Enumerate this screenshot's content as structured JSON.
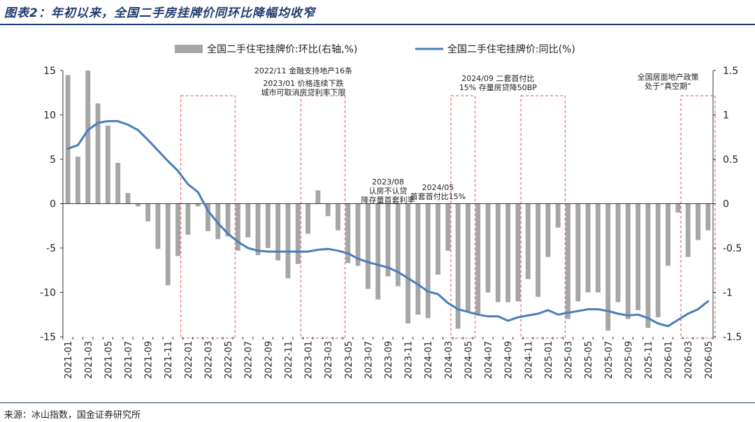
{
  "figure": {
    "title": "图表2：年初以来，全国二手房挂牌价同环比降幅均收窄",
    "source": "来源：冰山指数，国金证券研究所"
  },
  "chart_data": {
    "type": "bar+line",
    "categories": [
      "2021-01",
      "2021-02",
      "2021-03",
      "2021-04",
      "2021-05",
      "2021-06",
      "2021-07",
      "2021-08",
      "2021-09",
      "2021-10",
      "2021-11",
      "2021-12",
      "2022-01",
      "2022-02",
      "2022-03",
      "2022-04",
      "2022-05",
      "2022-06",
      "2022-07",
      "2022-08",
      "2022-09",
      "2022-10",
      "2022-11",
      "2022-12",
      "2023-01",
      "2023-02",
      "2023-03",
      "2023-04",
      "2023-05",
      "2023-06",
      "2023-07",
      "2023-08",
      "2023-09",
      "2023-10",
      "2023-11",
      "2023-12",
      "2024-01",
      "2024-02",
      "2024-03",
      "2024-04",
      "2024-05",
      "2024-06",
      "2024-07",
      "2024-08",
      "2024-09",
      "2024-10",
      "2024-11",
      "2024-12",
      "2025-01",
      "2025-02",
      "2025-03",
      "2025-04",
      "2025-05",
      "2025-06",
      "2025-07",
      "2025-08",
      "2025-09",
      "2025-10",
      "2025-11",
      "2025-12",
      "2026-01",
      "2026-02",
      "2026-03",
      "2026-04",
      "2026-05"
    ],
    "x_tick_labels": [
      "2021-01",
      "2021-03",
      "2021-05",
      "2021-07",
      "2021-09",
      "2021-11",
      "2022-01",
      "2022-03",
      "2022-05",
      "2022-07",
      "2022-09",
      "2022-11",
      "2023-01",
      "2023-03",
      "2023-05",
      "2023-07",
      "2023-09",
      "2023-11",
      "2024-01",
      "2024-03",
      "2024-05",
      "2024-07",
      "2024-09",
      "2024-11",
      "2025-01",
      "2025-03",
      "2025-05",
      "2025-07",
      "2025-09",
      "2025-11",
      "2026-01",
      "2026-03",
      "2026-05"
    ],
    "series": [
      {
        "name": "全国二手住宅挂牌价:环比(右轴,%)",
        "type": "bar",
        "axis": "left",
        "color": "#a6a6a6",
        "values": [
          14.5,
          5.3,
          15.0,
          11.3,
          8.8,
          4.6,
          1.2,
          -0.3,
          -2.0,
          -5.1,
          -9.2,
          -5.9,
          -3.5,
          -0.3,
          -3.1,
          -4.0,
          -3.7,
          -5.3,
          -3.8,
          -5.8,
          -5.0,
          -6.4,
          -8.4,
          -6.8,
          -3.4,
          1.5,
          -1.4,
          -3.0,
          -6.7,
          -7.0,
          -9.6,
          -10.8,
          -8.2,
          -9.3,
          -13.5,
          -12.5,
          -12.9,
          -8.0,
          -5.3,
          -14.1,
          -12.1,
          -12.4,
          -10.0,
          -11.1,
          -11.1,
          -11.0,
          -8.5,
          -10.5,
          -6.0,
          -2.7,
          -13.0,
          -11.0,
          -10.0,
          -10.0,
          -14.3,
          -11.1,
          -13.0,
          -12.0,
          -14.0,
          -12.8,
          -7.0,
          -1.0,
          -6.0,
          -4.1,
          -3.0
        ]
      },
      {
        "name": "全国二手住宅挂牌价:同比(%)",
        "type": "line",
        "axis": "right",
        "color": "#4a7ebb",
        "values": [
          0.62,
          0.66,
          0.83,
          0.91,
          0.93,
          0.93,
          0.89,
          0.83,
          0.72,
          0.6,
          0.48,
          0.37,
          0.22,
          0.13,
          -0.08,
          -0.22,
          -0.34,
          -0.43,
          -0.5,
          -0.53,
          -0.54,
          -0.54,
          -0.54,
          -0.54,
          -0.54,
          -0.52,
          -0.51,
          -0.53,
          -0.56,
          -0.62,
          -0.66,
          -0.69,
          -0.72,
          -0.77,
          -0.84,
          -0.91,
          -0.99,
          -1.02,
          -1.12,
          -1.19,
          -1.22,
          -1.25,
          -1.27,
          -1.27,
          -1.32,
          -1.28,
          -1.26,
          -1.24,
          -1.2,
          -1.25,
          -1.23,
          -1.21,
          -1.19,
          -1.19,
          -1.21,
          -1.24,
          -1.26,
          -1.25,
          -1.29,
          -1.35,
          -1.38,
          -1.31,
          -1.24,
          -1.19,
          -1.1
        ]
      }
    ],
    "left_axis": {
      "ylim": [
        -15,
        15
      ],
      "ticks": [
        "15",
        "10",
        "5",
        "0",
        "-5",
        "-10",
        "-15"
      ]
    },
    "right_axis": {
      "ylim": [
        -1.5,
        1.5
      ],
      "ticks": [
        "1.5",
        "1",
        "0.5",
        "0",
        "-0.5",
        "-1",
        "-1.5"
      ]
    },
    "legend_position": "top-center",
    "annotations": [
      {
        "month_index": 14,
        "lines": [
          "2022/11  金融支持地产16条"
        ]
      },
      {
        "month_index": 29,
        "lines": [
          "2023/01  价格连续下跌",
          "城市可取消房贷利率下限"
        ]
      },
      {
        "month_index": 32,
        "lines": [
          "2023/08",
          "认房不认贷",
          "降存量首套利率"
        ]
      },
      {
        "month_index": 37,
        "lines": [
          "2024/05",
          "首套首付比15%"
        ]
      },
      {
        "month_index": 43,
        "lines": [
          "2024/09  二套首付比",
          "15%  存量房贷降50BP"
        ]
      },
      {
        "month_index": 60,
        "lines": [
          "全国居面地产政策",
          "处于“真空期”"
        ]
      }
    ],
    "highlight_boxes": [
      {
        "from_month": 12,
        "to_month": 16
      },
      {
        "from_month": 24,
        "to_month": 27
      },
      {
        "from_month": 39,
        "to_month": 40
      },
      {
        "from_month": 46,
        "to_month": 49
      },
      {
        "from_month": 62,
        "to_month": 64
      }
    ],
    "colors": {
      "bar": "#a6a6a6",
      "line": "#4a7ebb",
      "box": "#d9534f",
      "axis": "#333333"
    }
  }
}
